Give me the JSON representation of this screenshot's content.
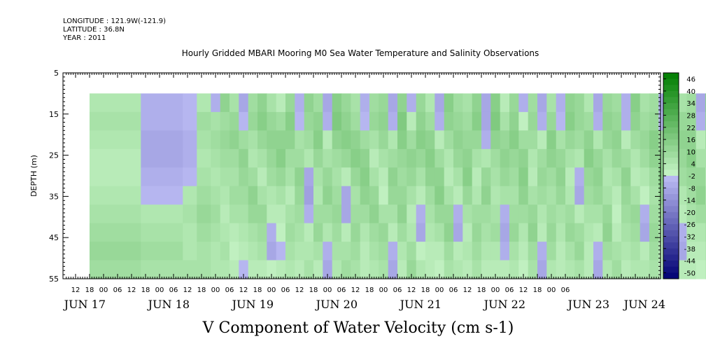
{
  "meta": {
    "longitude": "LONGITUDE : 121.9W(-121.9)",
    "latitude": "LATITUDE : 36.8N",
    "year": "YEAR : 2011"
  },
  "title": "Hourly Gridded MBARI Mooring M0 Sea Water Temperature and Salinity Observations",
  "chart_data": {
    "type": "heatmap",
    "title": "Hourly Gridded MBARI Mooring M0 Sea Water Temperature and Salinity Observations",
    "xlabel": "V Component of Water Velocity (cm s-1)",
    "ylabel": "DEPTH (m)",
    "ylim": [
      55,
      5
    ],
    "y_ticks": [
      5,
      15,
      25,
      35,
      45,
      55
    ],
    "x_hour_ticks": [
      "12",
      "18",
      "00",
      "06",
      "12",
      "18",
      "00",
      "06",
      "12",
      "18",
      "00",
      "06",
      "12",
      "18",
      "00",
      "06",
      "12",
      "18",
      "00",
      "06",
      "12",
      "18",
      "00",
      "06",
      "12",
      "18",
      "00",
      "06",
      "12",
      "18",
      "00",
      "06",
      "12",
      "18",
      "00",
      "06"
    ],
    "x_day_labels": [
      "JUN 17",
      "JUN 18",
      "JUN 19",
      "JUN 20",
      "JUN 21",
      "JUN 22",
      "JUN 23",
      "JUN 24"
    ],
    "data_depth_range": [
      10,
      55
    ],
    "colorbar_levels": [
      "46",
      "40",
      "34",
      "28",
      "22",
      "16",
      "10",
      "4",
      "-2",
      "-8",
      "-14",
      "-20",
      "-26",
      "-32",
      "-38",
      "-44",
      "-50"
    ],
    "color_range": [
      -50,
      50
    ],
    "columns": [
      {
        "hours": [
          0,
          22
        ],
        "v": [
          6,
          8,
          6,
          4,
          4,
          6,
          8,
          10,
          12,
          10
        ]
      },
      {
        "hours": [
          22,
          40
        ],
        "v": [
          -4,
          -4,
          -6,
          -6,
          -4,
          -2,
          6,
          8,
          10,
          8
        ]
      },
      {
        "hours": [
          40,
          46
        ],
        "v": [
          -2,
          -2,
          -4,
          -4,
          -2,
          6,
          8,
          6,
          6,
          8
        ]
      },
      {
        "hours": [
          46,
          52
        ],
        "v": [
          6,
          10,
          8,
          6,
          8,
          10,
          12,
          10,
          8,
          8
        ]
      },
      {
        "hours": [
          52,
          56
        ],
        "v": [
          -4,
          8,
          10,
          8,
          6,
          8,
          10,
          8,
          6,
          6
        ]
      },
      {
        "hours": [
          56,
          60
        ],
        "v": [
          14,
          10,
          12,
          10,
          8,
          6,
          4,
          6,
          8,
          6
        ]
      },
      {
        "hours": [
          60,
          64
        ],
        "v": [
          8,
          12,
          14,
          10,
          8,
          10,
          8,
          4,
          2,
          4
        ]
      },
      {
        "hours": [
          64,
          68
        ],
        "v": [
          -6,
          -2,
          10,
          14,
          12,
          10,
          8,
          6,
          4,
          -2
        ]
      },
      {
        "hours": [
          68,
          72
        ],
        "v": [
          10,
          12,
          8,
          6,
          10,
          14,
          12,
          8,
          6,
          4
        ]
      },
      {
        "hours": [
          72,
          76
        ],
        "v": [
          14,
          16,
          12,
          8,
          4,
          8,
          12,
          10,
          8,
          4
        ]
      },
      {
        "hours": [
          76,
          80
        ],
        "v": [
          8,
          12,
          14,
          12,
          10,
          6,
          4,
          -4,
          -6,
          2
        ]
      },
      {
        "hours": [
          80,
          84
        ],
        "v": [
          4,
          10,
          14,
          16,
          12,
          8,
          4,
          2,
          -2,
          4
        ]
      },
      {
        "hours": [
          84,
          88
        ],
        "v": [
          12,
          16,
          14,
          10,
          8,
          4,
          8,
          10,
          8,
          6
        ]
      },
      {
        "hours": [
          88,
          92
        ],
        "v": [
          -4,
          -2,
          8,
          10,
          14,
          12,
          10,
          8,
          6,
          4
        ]
      },
      {
        "hours": [
          92,
          96
        ],
        "v": [
          14,
          12,
          10,
          6,
          -6,
          -8,
          -4,
          4,
          6,
          8
        ]
      },
      {
        "hours": [
          96,
          100
        ],
        "v": [
          10,
          14,
          16,
          12,
          8,
          6,
          10,
          12,
          8,
          4
        ]
      },
      {
        "hours": [
          100,
          104
        ],
        "v": [
          -6,
          -4,
          4,
          8,
          12,
          14,
          10,
          6,
          -4,
          -6
        ]
      },
      {
        "hours": [
          104,
          108
        ],
        "v": [
          16,
          18,
          14,
          10,
          8,
          10,
          12,
          10,
          8,
          6
        ]
      },
      {
        "hours": [
          108,
          112
        ],
        "v": [
          12,
          14,
          16,
          12,
          4,
          -6,
          -6,
          4,
          8,
          10
        ]
      },
      {
        "hours": [
          112,
          116
        ],
        "v": [
          8,
          10,
          14,
          16,
          12,
          8,
          10,
          12,
          10,
          8
        ]
      },
      {
        "hours": [
          116,
          120
        ],
        "v": [
          -4,
          -2,
          10,
          14,
          16,
          14,
          10,
          6,
          4,
          4
        ]
      },
      {
        "hours": [
          120,
          124
        ],
        "v": [
          10,
          12,
          8,
          4,
          8,
          12,
          14,
          10,
          8,
          6
        ]
      },
      {
        "hours": [
          124,
          128
        ],
        "v": [
          12,
          14,
          12,
          8,
          4,
          2,
          8,
          12,
          10,
          8
        ]
      },
      {
        "hours": [
          128,
          132
        ],
        "v": [
          -6,
          -4,
          6,
          10,
          14,
          12,
          8,
          4,
          -4,
          -6
        ]
      },
      {
        "hours": [
          132,
          136
        ],
        "v": [
          14,
          18,
          16,
          12,
          10,
          12,
          14,
          10,
          6,
          4
        ]
      },
      {
        "hours": [
          136,
          140
        ],
        "v": [
          -4,
          4,
          10,
          14,
          12,
          8,
          4,
          6,
          10,
          12
        ]
      },
      {
        "hours": [
          140,
          144
        ],
        "v": [
          12,
          14,
          16,
          12,
          8,
          4,
          -4,
          -6,
          2,
          6
        ]
      },
      {
        "hours": [
          144,
          148
        ],
        "v": [
          6,
          10,
          14,
          16,
          14,
          10,
          8,
          6,
          4,
          4
        ]
      },
      {
        "hours": [
          148,
          152
        ],
        "v": [
          -6,
          -4,
          4,
          10,
          14,
          16,
          12,
          8,
          4,
          2
        ]
      },
      {
        "hours": [
          152,
          156
        ],
        "v": [
          16,
          14,
          10,
          6,
          4,
          8,
          12,
          14,
          10,
          8
        ]
      },
      {
        "hours": [
          156,
          160
        ],
        "v": [
          10,
          12,
          14,
          12,
          8,
          4,
          -4,
          -6,
          4,
          6
        ]
      },
      {
        "hours": [
          160,
          164
        ],
        "v": [
          8,
          10,
          12,
          14,
          16,
          12,
          8,
          4,
          6,
          4
        ]
      },
      {
        "hours": [
          164,
          168
        ],
        "v": [
          14,
          16,
          12,
          8,
          4,
          6,
          10,
          12,
          10,
          8
        ]
      },
      {
        "hours": [
          168,
          172
        ],
        "v": [
          -6,
          -6,
          -4,
          6,
          12,
          14,
          10,
          8,
          6,
          4
        ]
      },
      {
        "hours": [
          172,
          176
        ],
        "v": [
          16,
          18,
          14,
          10,
          8,
          6,
          8,
          10,
          6,
          4
        ]
      },
      {
        "hours": [
          176,
          180
        ],
        "v": [
          4,
          8,
          12,
          14,
          12,
          8,
          -4,
          -6,
          -4,
          4
        ]
      },
      {
        "hours": [
          180,
          184
        ],
        "v": [
          12,
          14,
          16,
          12,
          10,
          8,
          10,
          12,
          8,
          6
        ]
      },
      {
        "hours": [
          184,
          188
        ],
        "v": [
          -4,
          2,
          10,
          14,
          16,
          14,
          10,
          6,
          4,
          2
        ]
      },
      {
        "hours": [
          188,
          192
        ],
        "v": [
          10,
          12,
          10,
          6,
          4,
          8,
          12,
          14,
          10,
          8
        ]
      },
      {
        "hours": [
          192,
          196
        ],
        "v": [
          -6,
          -4,
          4,
          10,
          12,
          10,
          6,
          4,
          -4,
          -6
        ]
      },
      {
        "hours": [
          196,
          200
        ],
        "v": [
          8,
          12,
          16,
          14,
          10,
          8,
          10,
          12,
          10,
          6
        ]
      },
      {
        "hours": [
          200,
          204
        ],
        "v": [
          -4,
          -2,
          8,
          12,
          14,
          12,
          8,
          6,
          4,
          4
        ]
      },
      {
        "hours": [
          204,
          208
        ],
        "v": [
          14,
          16,
          12,
          8,
          4,
          6,
          10,
          12,
          8,
          6
        ]
      },
      {
        "hours": [
          208,
          212
        ],
        "v": [
          12,
          12,
          10,
          6,
          -4,
          -6,
          4,
          10,
          12,
          8
        ]
      },
      {
        "hours": [
          212,
          216
        ],
        "v": [
          6,
          10,
          14,
          16,
          12,
          10,
          8,
          6,
          4,
          4
        ]
      },
      {
        "hours": [
          216,
          220
        ],
        "v": [
          -6,
          -4,
          6,
          12,
          14,
          12,
          8,
          4,
          -4,
          -6
        ]
      },
      {
        "hours": [
          220,
          224
        ],
        "v": [
          12,
          14,
          12,
          8,
          6,
          8,
          12,
          14,
          10,
          6
        ]
      },
      {
        "hours": [
          224,
          228
        ],
        "v": [
          10,
          12,
          14,
          12,
          8,
          4,
          2,
          4,
          8,
          10
        ]
      },
      {
        "hours": [
          228,
          232
        ],
        "v": [
          -4,
          -4,
          4,
          10,
          14,
          12,
          10,
          8,
          6,
          4
        ]
      },
      {
        "hours": [
          232,
          236
        ],
        "v": [
          16,
          14,
          10,
          6,
          4,
          8,
          12,
          10,
          8,
          6
        ]
      },
      {
        "hours": [
          236,
          240
        ],
        "v": [
          8,
          10,
          12,
          10,
          6,
          2,
          -4,
          -6,
          4,
          6
        ]
      },
      {
        "hours": [
          240,
          244
        ],
        "v": [
          10,
          12,
          16,
          14,
          10,
          8,
          10,
          12,
          10,
          8
        ]
      },
      {
        "hours": [
          244,
          248
        ],
        "v": [
          -4,
          -2,
          8,
          12,
          14,
          12,
          8,
          6,
          4,
          2
        ]
      },
      {
        "hours": [
          248,
          252
        ],
        "v": [
          12,
          14,
          12,
          8,
          6,
          8,
          10,
          12,
          8,
          6
        ]
      },
      {
        "hours": [
          252,
          256
        ],
        "v": [
          8,
          12,
          14,
          12,
          10,
          6,
          4,
          -4,
          -6,
          4
        ]
      },
      {
        "hours": [
          256,
          260
        ],
        "v": [
          10,
          12,
          14,
          16,
          12,
          10,
          8,
          6,
          4,
          4
        ]
      },
      {
        "hours": [
          260,
          264
        ],
        "v": [
          -6,
          -4,
          4,
          8,
          12,
          14,
          10,
          6,
          4,
          2
        ]
      },
      {
        "hours": [
          264,
          268
        ],
        "v": [
          14,
          12,
          10,
          8,
          6,
          8,
          10,
          8,
          6,
          4
        ]
      },
      {
        "hours": [
          268,
          272
        ],
        "v": [
          12,
          14,
          12,
          8,
          4,
          2,
          -4,
          -6,
          4,
          6
        ]
      },
      {
        "hours": [
          272,
          276
        ],
        "v": [
          8,
          10,
          14,
          12,
          10,
          8,
          10,
          12,
          10,
          8
        ]
      },
      {
        "hours": [
          276,
          280
        ],
        "v": [
          -6,
          -4,
          -2,
          6,
          10,
          12,
          8,
          6,
          4,
          4
        ]
      },
      {
        "hours": [
          280,
          284
        ],
        "v": [
          12,
          14,
          12,
          8,
          4,
          6,
          10,
          12,
          8,
          6
        ]
      },
      {
        "hours": [
          284,
          286
        ],
        "v": [
          -4,
          -4,
          -2,
          4,
          8,
          10,
          8,
          6,
          4,
          4
        ]
      }
    ]
  }
}
